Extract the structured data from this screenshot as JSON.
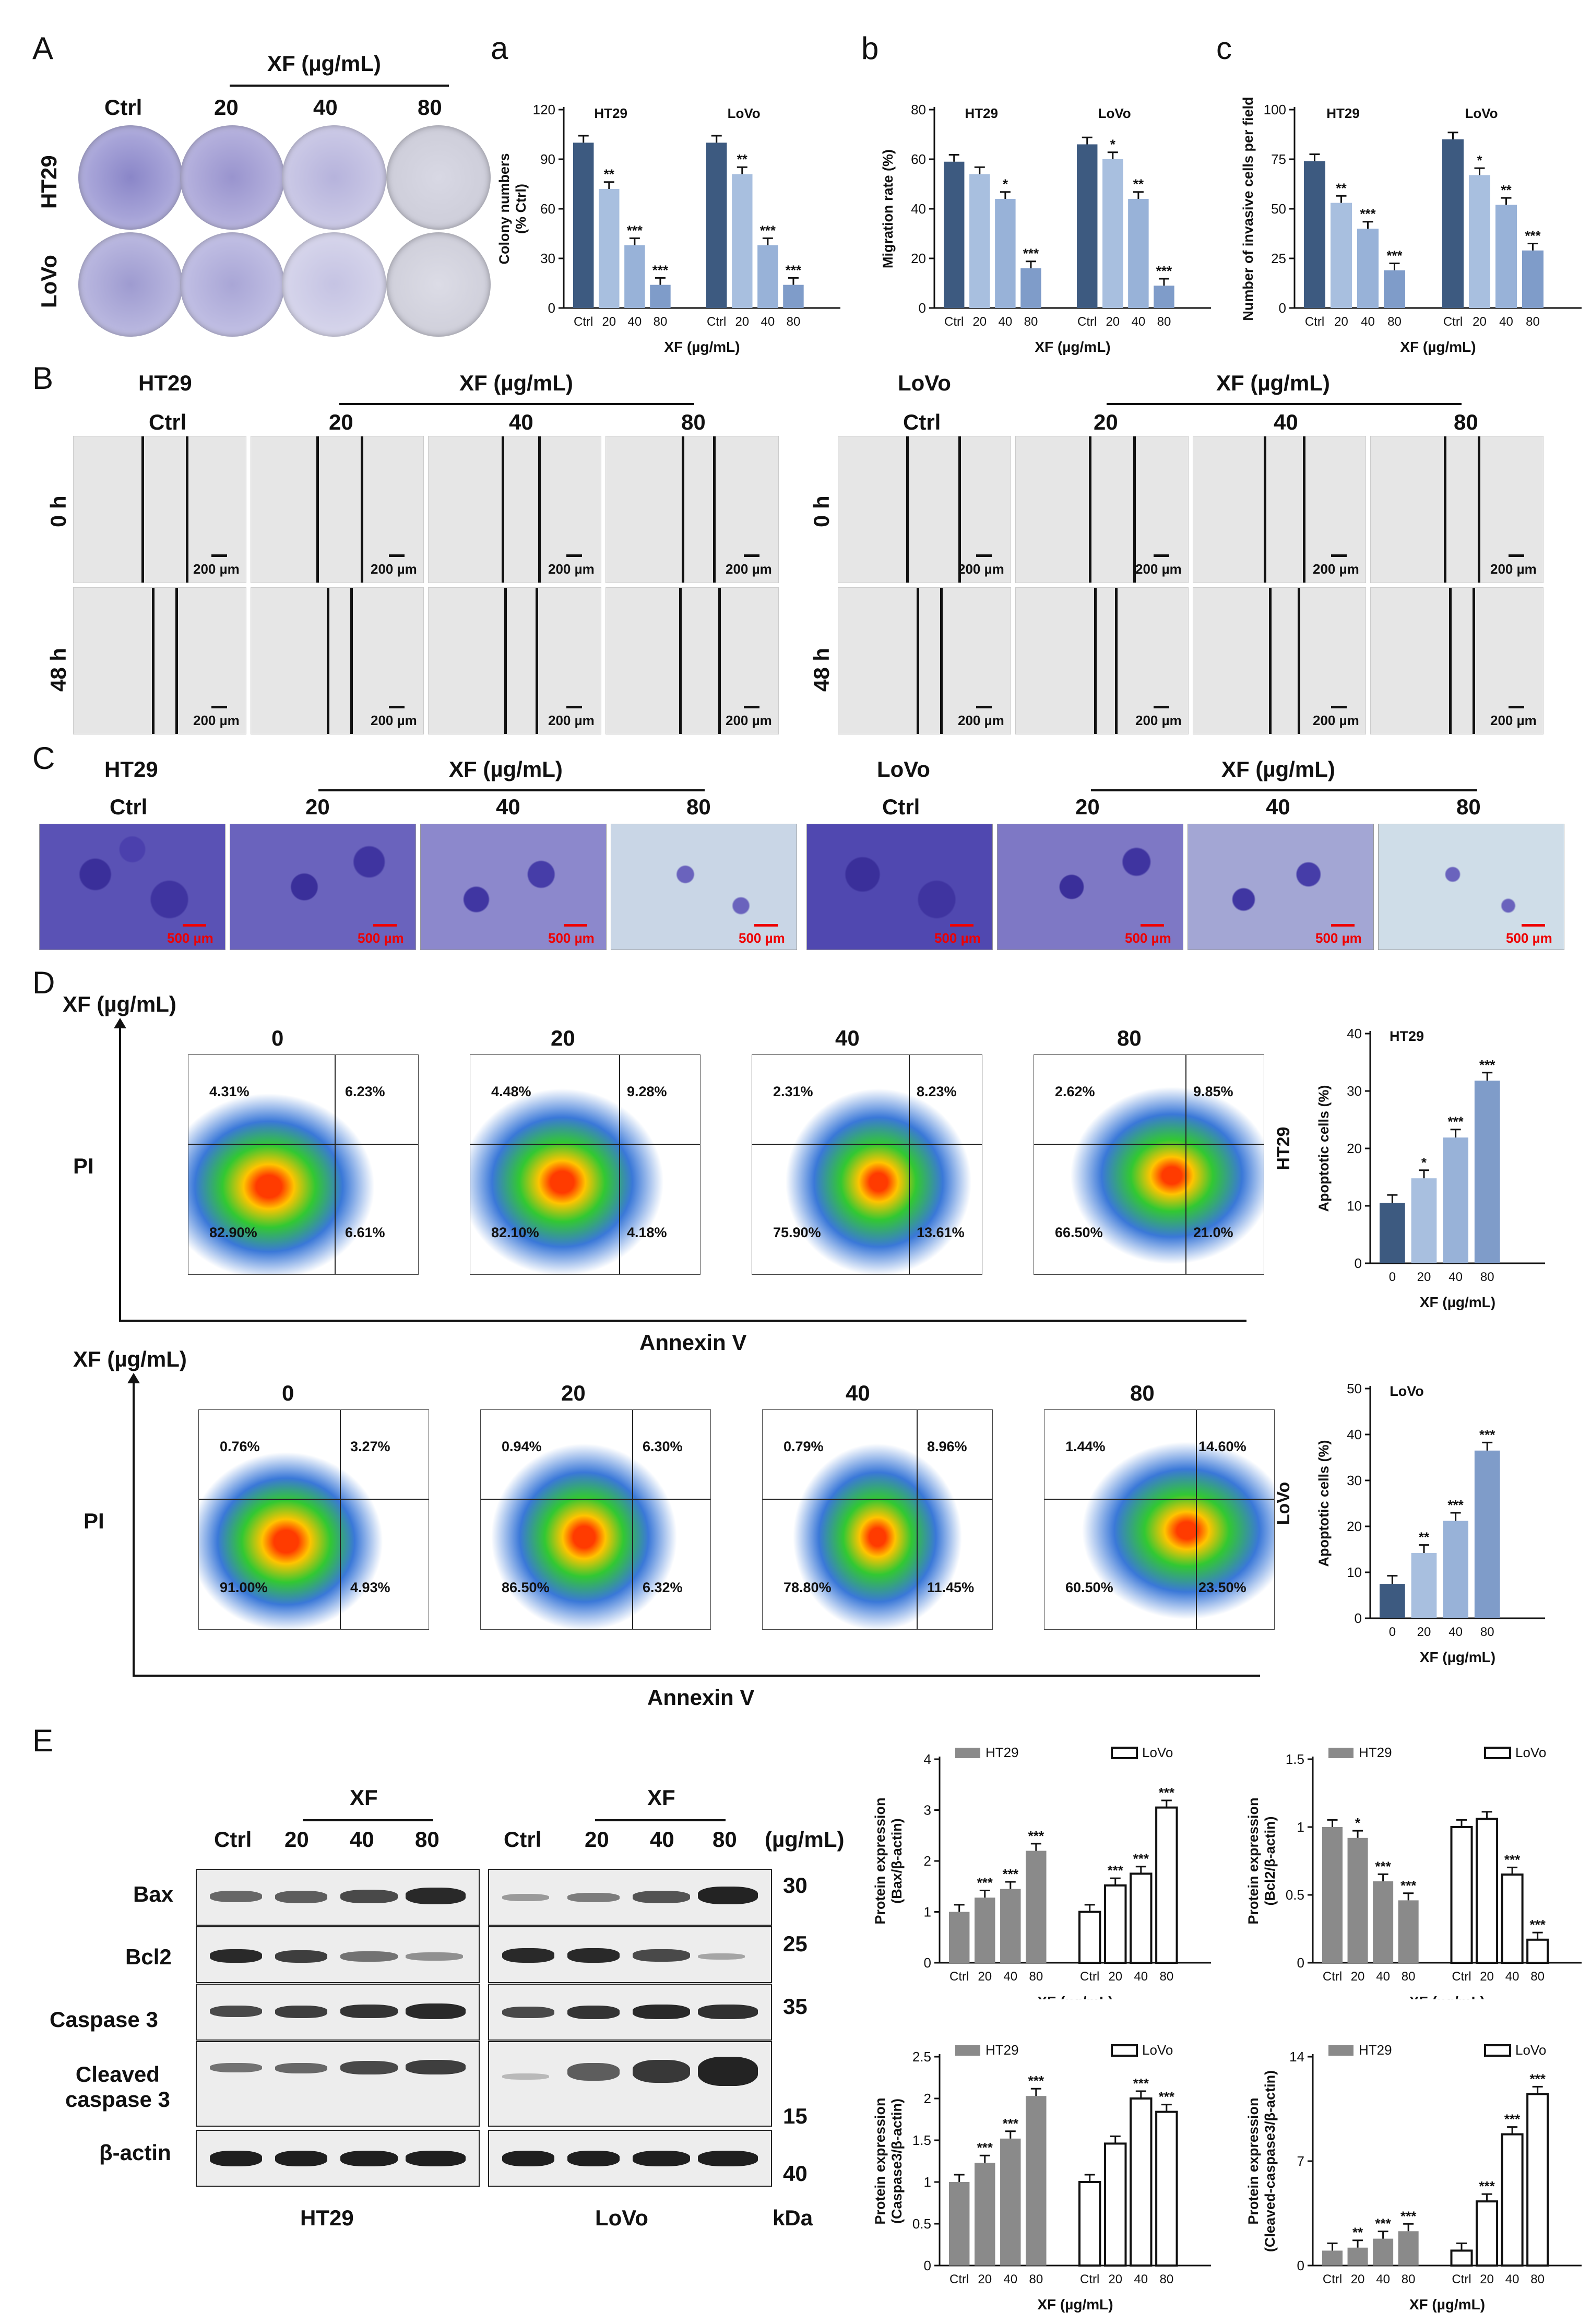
{
  "panel_letters": {
    "A": "A",
    "a": "a",
    "b": "b",
    "c": "c",
    "B": "B",
    "C": "C",
    "D": "D",
    "E": "E"
  },
  "panelA": {
    "treatment_label": "XF (µg/mL)",
    "columns": [
      "Ctrl",
      "20",
      "40",
      "80"
    ],
    "rows": [
      "HT29",
      "LoVo"
    ]
  },
  "panelB": {
    "left_cell": "HT29",
    "right_cell": "LoVo",
    "treatment_label": "XF (µg/mL)",
    "columns": [
      "Ctrl",
      "20",
      "40",
      "80"
    ],
    "rows": [
      "0 h",
      "48 h"
    ],
    "scale": "200 µm"
  },
  "panelC": {
    "left_cell": "HT29",
    "right_cell": "LoVo",
    "treatment_label": "XF (µg/mL)",
    "columns": [
      "Ctrl",
      "20",
      "40",
      "80"
    ],
    "scale": "500 µm"
  },
  "panelD": {
    "y_title": "XF (µg/mL)",
    "doses": [
      "0",
      "20",
      "40",
      "80"
    ],
    "y_axis": "PI",
    "x_axis": "Annexin V",
    "ht29": {
      "cell": "HT29",
      "quadrants": [
        {
          "ul": "4.31%",
          "ur": "6.23%",
          "ll": "82.90%",
          "lr": "6.61%"
        },
        {
          "ul": "4.48%",
          "ur": "9.28%",
          "ll": "82.10%",
          "lr": "4.18%"
        },
        {
          "ul": "2.31%",
          "ur": "8.23%",
          "ll": "75.90%",
          "lr": "13.61%"
        },
        {
          "ul": "2.62%",
          "ur": "9.85%",
          "ll": "66.50%",
          "lr": "21.0%"
        }
      ]
    },
    "lovo": {
      "cell": "LoVo",
      "quadrants": [
        {
          "ul": "0.76%",
          "ur": "3.27%",
          "ll": "91.00%",
          "lr": "4.93%"
        },
        {
          "ul": "0.94%",
          "ur": "6.30%",
          "ll": "86.50%",
          "lr": "6.32%"
        },
        {
          "ul": "0.79%",
          "ur": "8.96%",
          "ll": "78.80%",
          "lr": "11.45%"
        },
        {
          "ul": "1.44%",
          "ur": "14.60%",
          "ll": "60.50%",
          "lr": "23.50%"
        }
      ]
    }
  },
  "panelE": {
    "xf_label": "XF",
    "lanes": [
      "Ctrl",
      "20",
      "40",
      "80"
    ],
    "unit": "(µg/mL)",
    "proteins": [
      "Bax",
      "Bcl2",
      "Caspase 3",
      "Cleaved\ncaspase 3",
      "β-actin"
    ],
    "kda_marks": [
      "30",
      "25",
      "35",
      "15",
      "40"
    ],
    "kda_label": "kDa",
    "cells": [
      "HT29",
      "LoVo"
    ]
  },
  "chart_data": [
    {
      "id": "Aa",
      "type": "bar",
      "ylabel": "Colony numbers\n(% Ctrl)",
      "xlabel": "XF (µg/mL)",
      "ylim": [
        0,
        120
      ],
      "yticks": [
        0,
        30,
        60,
        90,
        120
      ],
      "groups": [
        "HT29",
        "LoVo"
      ],
      "categories": [
        "Ctrl",
        "20",
        "40",
        "80"
      ],
      "series": [
        {
          "name": "HT29",
          "values": [
            100,
            72,
            38,
            14
          ],
          "sig": [
            "",
            "**",
            "***",
            "***"
          ]
        },
        {
          "name": "LoVo",
          "values": [
            100,
            81,
            38,
            14
          ],
          "sig": [
            "",
            "**",
            "***",
            "***"
          ]
        }
      ]
    },
    {
      "id": "Ab",
      "type": "bar",
      "ylabel": "Migration rate (%)",
      "xlabel": "XF (µg/mL)",
      "ylim": [
        0,
        80
      ],
      "yticks": [
        0,
        20,
        40,
        60,
        80
      ],
      "groups": [
        "HT29",
        "LoVo"
      ],
      "categories": [
        "Ctrl",
        "20",
        "40",
        "80"
      ],
      "series": [
        {
          "name": "HT29",
          "values": [
            59,
            54,
            44,
            16
          ],
          "sig": [
            "",
            "",
            "*",
            "***"
          ]
        },
        {
          "name": "LoVo",
          "values": [
            66,
            60,
            44,
            9
          ],
          "sig": [
            "",
            "*",
            "**",
            "***"
          ]
        }
      ]
    },
    {
      "id": "Ac",
      "type": "bar",
      "ylabel": "Number of invasive cells per field",
      "xlabel": "XF (µg/mL)",
      "ylim": [
        0,
        100
      ],
      "yticks": [
        0,
        25,
        50,
        75,
        100
      ],
      "groups": [
        "HT29",
        "LoVo"
      ],
      "categories": [
        "Ctrl",
        "20",
        "40",
        "80"
      ],
      "series": [
        {
          "name": "HT29",
          "values": [
            74,
            53,
            40,
            19
          ],
          "sig": [
            "",
            "**",
            "***",
            "***"
          ]
        },
        {
          "name": "LoVo",
          "values": [
            85,
            67,
            52,
            29
          ],
          "sig": [
            "",
            "*",
            "**",
            "***"
          ]
        }
      ]
    },
    {
      "id": "D1",
      "type": "bar",
      "ylabel": "Apoptotic cells (%)",
      "xlabel": "XF (µg/mL)",
      "ylim": [
        0,
        40
      ],
      "yticks": [
        0,
        10,
        20,
        30,
        40
      ],
      "side": "HT29",
      "categories": [
        "0",
        "20",
        "40",
        "80"
      ],
      "series": [
        {
          "name": "HT29",
          "values": [
            10.5,
            14.8,
            21.9,
            31.8
          ],
          "sig": [
            "",
            "*",
            "***",
            "***"
          ]
        }
      ]
    },
    {
      "id": "D2",
      "type": "bar",
      "ylabel": "Apoptotic cells (%)",
      "xlabel": "XF (µg/mL)",
      "ylim": [
        0,
        50
      ],
      "yticks": [
        0,
        10,
        20,
        30,
        40,
        50
      ],
      "side": "LoVo",
      "categories": [
        "0",
        "20",
        "40",
        "80"
      ],
      "series": [
        {
          "name": "LoVo",
          "values": [
            7.5,
            14.2,
            21.2,
            36.5
          ],
          "sig": [
            "",
            "**",
            "***",
            "***"
          ]
        }
      ]
    },
    {
      "id": "E1",
      "type": "bar",
      "ylabel": "Protein expression\n(Bax/β-actin)",
      "xlabel": "XF (µg/mL)",
      "ylim": [
        0,
        4
      ],
      "yticks": [
        0,
        1,
        2,
        3,
        4
      ],
      "legend": [
        "HT29",
        "LoVo"
      ],
      "categories": [
        "Ctrl",
        "20",
        "40",
        "80"
      ],
      "series": [
        {
          "name": "HT29",
          "values": [
            1.0,
            1.28,
            1.45,
            2.2
          ],
          "sig": [
            "",
            "***",
            "***",
            "***"
          ]
        },
        {
          "name": "LoVo",
          "values": [
            1.0,
            1.52,
            1.75,
            3.05
          ],
          "sig": [
            "",
            "***",
            "***",
            "***"
          ]
        }
      ]
    },
    {
      "id": "E2",
      "type": "bar",
      "ylabel": "Protein expression\n(Bcl2/β-actin)",
      "xlabel": "XF (µg/mL)",
      "ylim": [
        0,
        1.5
      ],
      "yticks": [
        0.0,
        0.5,
        1.0,
        1.5
      ],
      "legend": [
        "HT29",
        "LoVo"
      ],
      "categories": [
        "Ctrl",
        "20",
        "40",
        "80"
      ],
      "series": [
        {
          "name": "HT29",
          "values": [
            1.0,
            0.92,
            0.6,
            0.46
          ],
          "sig": [
            "",
            "*",
            "***",
            "***"
          ]
        },
        {
          "name": "LoVo",
          "values": [
            1.0,
            1.06,
            0.65,
            0.17
          ],
          "sig": [
            "",
            "",
            "***",
            "***"
          ]
        }
      ]
    },
    {
      "id": "E3",
      "type": "bar",
      "ylabel": "Protein expression\n(Caspase3/β-actin)",
      "xlabel": "XF (µg/mL)",
      "ylim": [
        0,
        2.5
      ],
      "yticks": [
        0.0,
        0.5,
        1.0,
        1.5,
        2.0,
        2.5
      ],
      "legend": [
        "HT29",
        "LoVo"
      ],
      "categories": [
        "Ctrl",
        "20",
        "40",
        "80"
      ],
      "series": [
        {
          "name": "HT29",
          "values": [
            1.0,
            1.23,
            1.52,
            2.03
          ],
          "sig": [
            "",
            "***",
            "***",
            "***"
          ]
        },
        {
          "name": "LoVo",
          "values": [
            1.0,
            1.46,
            2.0,
            1.84
          ],
          "sig": [
            "",
            "",
            "***",
            "***"
          ]
        }
      ]
    },
    {
      "id": "E4",
      "type": "bar",
      "ylabel": "Protein expression\n(Cleaved-caspase3/β-actin)",
      "xlabel": "XF (µg/mL)",
      "ylim": [
        0,
        14
      ],
      "yticks": [
        0,
        7,
        14
      ],
      "legend": [
        "HT29",
        "LoVo"
      ],
      "categories": [
        "Ctrl",
        "20",
        "40",
        "80"
      ],
      "series": [
        {
          "name": "HT29",
          "values": [
            1.0,
            1.2,
            1.8,
            2.3
          ],
          "sig": [
            "",
            "**",
            "***",
            "***"
          ]
        },
        {
          "name": "LoVo",
          "values": [
            1.0,
            4.3,
            8.8,
            11.5
          ],
          "sig": [
            "",
            "***",
            "***",
            "***"
          ]
        }
      ]
    }
  ]
}
